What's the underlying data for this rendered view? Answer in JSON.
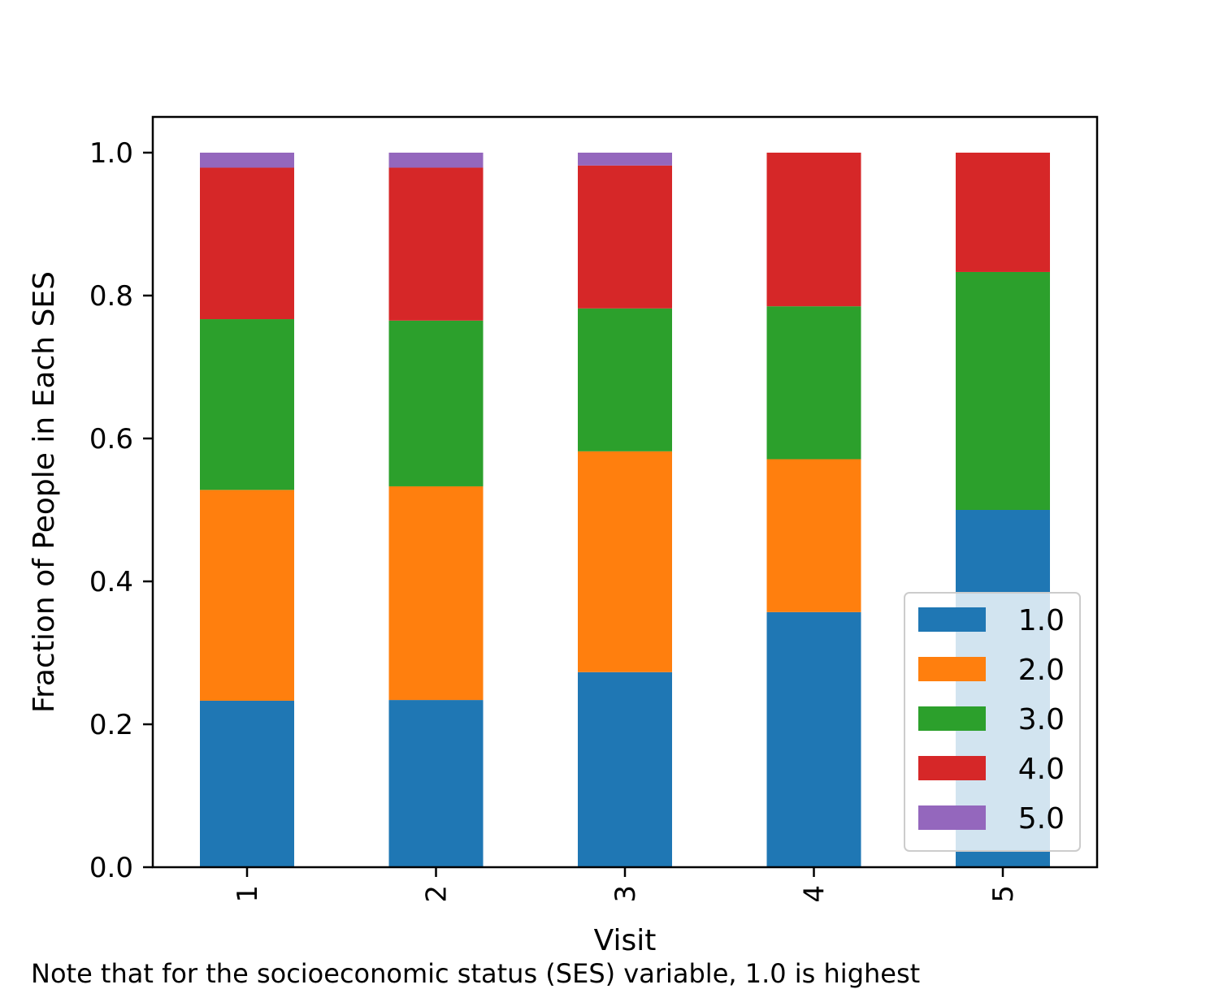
{
  "chart_data": {
    "type": "bar",
    "stacked": true,
    "title": "",
    "xlabel": "Visit",
    "ylabel": "Fraction of People in Each SES",
    "categories": [
      "1",
      "2",
      "3",
      "4",
      "5"
    ],
    "ylim": [
      0,
      1.05
    ],
    "yticks": [
      "0.0",
      "0.2",
      "0.4",
      "0.6",
      "0.8",
      "1.0"
    ],
    "grid": false,
    "legend_position": "lower-right",
    "series": [
      {
        "name": "1.0",
        "color": "#1f77b4",
        "values": [
          0.233,
          0.234,
          0.273,
          0.357,
          0.5
        ]
      },
      {
        "name": "2.0",
        "color": "#ff7f0e",
        "values": [
          0.295,
          0.299,
          0.309,
          0.214,
          0.0
        ]
      },
      {
        "name": "3.0",
        "color": "#2ca02c",
        "values": [
          0.239,
          0.232,
          0.2,
          0.214,
          0.333
        ]
      },
      {
        "name": "4.0",
        "color": "#d62728",
        "values": [
          0.212,
          0.214,
          0.2,
          0.215,
          0.167
        ]
      },
      {
        "name": "5.0",
        "color": "#9467bd",
        "values": [
          0.021,
          0.021,
          0.018,
          0.0,
          0.0
        ]
      }
    ]
  },
  "caption": "Note that for the socioeconomic status (SES) variable, 1.0 is highest"
}
